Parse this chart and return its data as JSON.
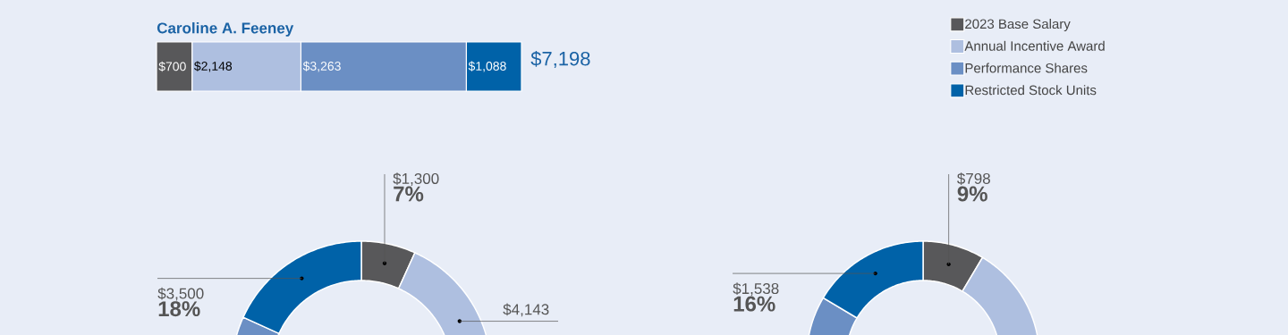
{
  "chart_data": [
    {
      "type": "bar",
      "orientation": "horizontal",
      "stacked": true,
      "title": "Caroline A. Feeney",
      "categories": [
        null
      ],
      "legend": "top right",
      "totals": [
        "$7,198"
      ],
      "series": [
        {
          "name": "2023 Base Salary",
          "color": "#58585a",
          "values": [
            700
          ],
          "value_labels": [
            "$700"
          ]
        },
        {
          "name": "Annual Incentive Award",
          "color": "#aebfe0",
          "values": [
            2148
          ],
          "value_labels": [
            "$2,148"
          ]
        },
        {
          "name": "Performance Shares",
          "color": "#6b8fc4",
          "values": [
            3263
          ],
          "value_labels": [
            "$3,263"
          ]
        },
        {
          "name": "Restricted Stock Units",
          "color": "#0062a8",
          "values": [
            1088
          ],
          "value_labels": [
            "$1,088"
          ]
        }
      ]
    },
    {
      "type": "donut",
      "categories": [
        null,
        null,
        null,
        null
      ],
      "values": [
        1300,
        4143,
        10257,
        3500
      ],
      "colors": [
        "#58585a",
        "#aebfe0",
        "#6b8fc4",
        "#0062a8"
      ],
      "value_labels": [
        "$1,300 **7%**",
        "$4,143",
        null,
        "$3,500 **18%**"
      ]
    },
    {
      "type": "donut",
      "categories": [
        null,
        null,
        null,
        null
      ],
      "values": [
        798,
        2700,
        4314,
        1538
      ],
      "colors": [
        "#58585a",
        "#aebfe0",
        "#6b8fc4",
        "#0062a8"
      ],
      "value_labels": [
        "$798 **9%**",
        null,
        null,
        "$1,538 **16%**"
      ]
    }
  ]
}
